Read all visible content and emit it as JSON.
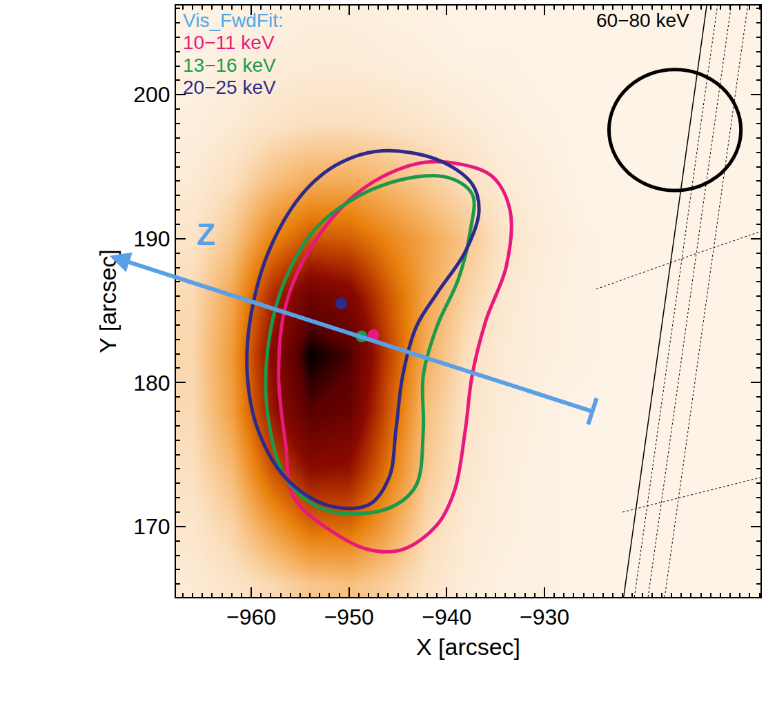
{
  "chart_data": {
    "type": "image",
    "x_label": "X [arcsec]",
    "y_label": "Y [arcsec]",
    "xlim": [
      -967.7,
      -907.9
    ],
    "ylim": [
      165.1,
      206.2
    ],
    "xticks": [
      -960,
      -950,
      -940,
      -930
    ],
    "yticks": [
      170,
      180,
      190,
      200
    ],
    "legend": "top left",
    "legend_title": "Vis_FwdFit:",
    "legend_title_color": "#4fa8e8",
    "image_label": "60−80 keV",
    "image": {
      "x": [
        -966,
        -962,
        -958,
        -954,
        -950,
        -946,
        -942,
        -938,
        -934,
        -930,
        -926,
        -922,
        -918,
        -914,
        -910
      ],
      "y": [
        166,
        170,
        174,
        178,
        182,
        186,
        190,
        194,
        198,
        202,
        206
      ],
      "zlim": [
        0,
        1
      ],
      "z": [
        [
          0.05,
          0.08,
          0.12,
          0.18,
          0.2,
          0.15,
          0.08,
          0.04,
          0.02,
          0.02,
          0.01,
          0.01,
          0.01,
          0.01,
          0.01
        ],
        [
          0.07,
          0.14,
          0.3,
          0.45,
          0.45,
          0.3,
          0.12,
          0.05,
          0.03,
          0.02,
          0.01,
          0.01,
          0.01,
          0.01,
          0.01
        ],
        [
          0.1,
          0.22,
          0.5,
          0.7,
          0.68,
          0.42,
          0.17,
          0.07,
          0.03,
          0.02,
          0.01,
          0.01,
          0.01,
          0.01,
          0.01
        ],
        [
          0.12,
          0.3,
          0.65,
          0.9,
          0.85,
          0.5,
          0.2,
          0.08,
          0.04,
          0.02,
          0.01,
          0.01,
          0.01,
          0.01,
          0.01
        ],
        [
          0.13,
          0.32,
          0.7,
          1.0,
          0.92,
          0.55,
          0.25,
          0.1,
          0.05,
          0.03,
          0.02,
          0.01,
          0.01,
          0.01,
          0.01
        ],
        [
          0.12,
          0.28,
          0.6,
          0.82,
          0.75,
          0.5,
          0.28,
          0.14,
          0.06,
          0.03,
          0.02,
          0.01,
          0.01,
          0.01,
          0.01
        ],
        [
          0.08,
          0.18,
          0.38,
          0.5,
          0.48,
          0.38,
          0.28,
          0.18,
          0.08,
          0.04,
          0.02,
          0.01,
          0.01,
          0.01,
          0.01
        ],
        [
          0.05,
          0.1,
          0.2,
          0.26,
          0.26,
          0.22,
          0.16,
          0.1,
          0.05,
          0.03,
          0.01,
          0.01,
          0.01,
          0.01,
          0.01
        ],
        [
          0.03,
          0.05,
          0.08,
          0.1,
          0.1,
          0.09,
          0.07,
          0.05,
          0.03,
          0.02,
          0.01,
          0.01,
          0.01,
          0.01,
          0.01
        ],
        [
          0.02,
          0.03,
          0.04,
          0.05,
          0.05,
          0.04,
          0.03,
          0.02,
          0.02,
          0.01,
          0.01,
          0.01,
          0.01,
          0.01,
          0.01
        ],
        [
          0.01,
          0.02,
          0.02,
          0.03,
          0.03,
          0.02,
          0.02,
          0.01,
          0.01,
          0.01,
          0.01,
          0.01,
          0.01,
          0.01,
          0.01
        ]
      ]
    },
    "series": [
      {
        "name": "10−11 keV",
        "color": "#e8197d",
        "x": [
          -938.8,
          -935.3,
          -933.5,
          -933.9,
          -936.0,
          -937.4,
          -938.1,
          -939.2,
          -941.0,
          -944.5,
          -948.0,
          -951.6,
          -955.6,
          -956.5,
          -957.2,
          -956.5,
          -953.7,
          -948.7,
          -943.1
        ],
        "y": [
          195.2,
          194.3,
          191.9,
          188.1,
          184.3,
          180.5,
          176.7,
          172.5,
          170.1,
          168.4,
          168.4,
          169.6,
          172.0,
          175.8,
          180.5,
          185.3,
          189.6,
          193.4,
          195.2
        ],
        "centroid": [
          -947.5,
          183.3
        ]
      },
      {
        "name": "13−16 keV",
        "color": "#1a9a4a",
        "x": [
          -940.2,
          -937.4,
          -937.6,
          -938.8,
          -941.0,
          -942.4,
          -942.4,
          -943.1,
          -945.2,
          -948.7,
          -953.0,
          -956.5,
          -958.3,
          -958.3,
          -956.5,
          -953.0,
          -946.6
        ],
        "y": [
          194.3,
          193.1,
          190.5,
          187.2,
          183.9,
          180.5,
          176.7,
          172.9,
          171.5,
          170.9,
          171.3,
          173.4,
          177.7,
          182.4,
          187.2,
          191.0,
          193.7
        ],
        "centroid": [
          -948.7,
          183.2
        ]
      },
      {
        "name": "20−25 keV",
        "color": "#2e2a8c",
        "x": [
          -946.6,
          -941.0,
          -937.4,
          -936.7,
          -938.1,
          -941.0,
          -943.1,
          -944.5,
          -945.2,
          -945.9,
          -948.0,
          -952.3,
          -956.5,
          -959.3,
          -960.4,
          -960.0,
          -957.9,
          -954.4,
          -950.8
        ],
        "y": [
          196.1,
          195.5,
          193.8,
          191.9,
          189.1,
          186.2,
          183.9,
          180.5,
          176.7,
          173.4,
          171.5,
          171.5,
          173.4,
          176.7,
          180.5,
          184.8,
          189.6,
          193.4,
          195.3
        ],
        "centroid": [
          -950.8,
          185.5
        ]
      }
    ],
    "beam": {
      "x0": -923.4,
      "x1": -909.9,
      "y0": 193.35,
      "y1": 201.75,
      "color": "#000000"
    },
    "limb_lines": [
      {
        "x": [
          -921.9,
          -913.4
        ],
        "y": [
          165.1,
          206.2
        ],
        "line_style": "solid"
      },
      {
        "x": [
          -920.8,
          -912.3
        ],
        "y": [
          165.1,
          206.2
        ],
        "line_style": "dotted"
      },
      {
        "x": [
          -919.4,
          -910.9
        ],
        "y": [
          165.1,
          206.2
        ],
        "line_style": "dotted"
      },
      {
        "x": [
          -917.7,
          -909.2
        ],
        "y": [
          165.1,
          206.2
        ],
        "line_style": "dotted"
      },
      {
        "x": [
          -924.7,
          -916.0,
          -907.9
        ],
        "y": [
          186.5,
          188.6,
          190.5
        ],
        "line_style": "dotted"
      },
      {
        "x": [
          -922.0,
          -915.0,
          -907.9
        ],
        "y": [
          171.0,
          172.2,
          173.4
        ],
        "line_style": "dotted"
      }
    ],
    "arrow": {
      "label": "Z",
      "color": "#5aa0e6",
      "from": [
        -925.1,
        178.0
      ],
      "to": [
        -974.5,
        188.8
      ],
      "label_at": [
        -964.6,
        190.3
      ]
    }
  }
}
